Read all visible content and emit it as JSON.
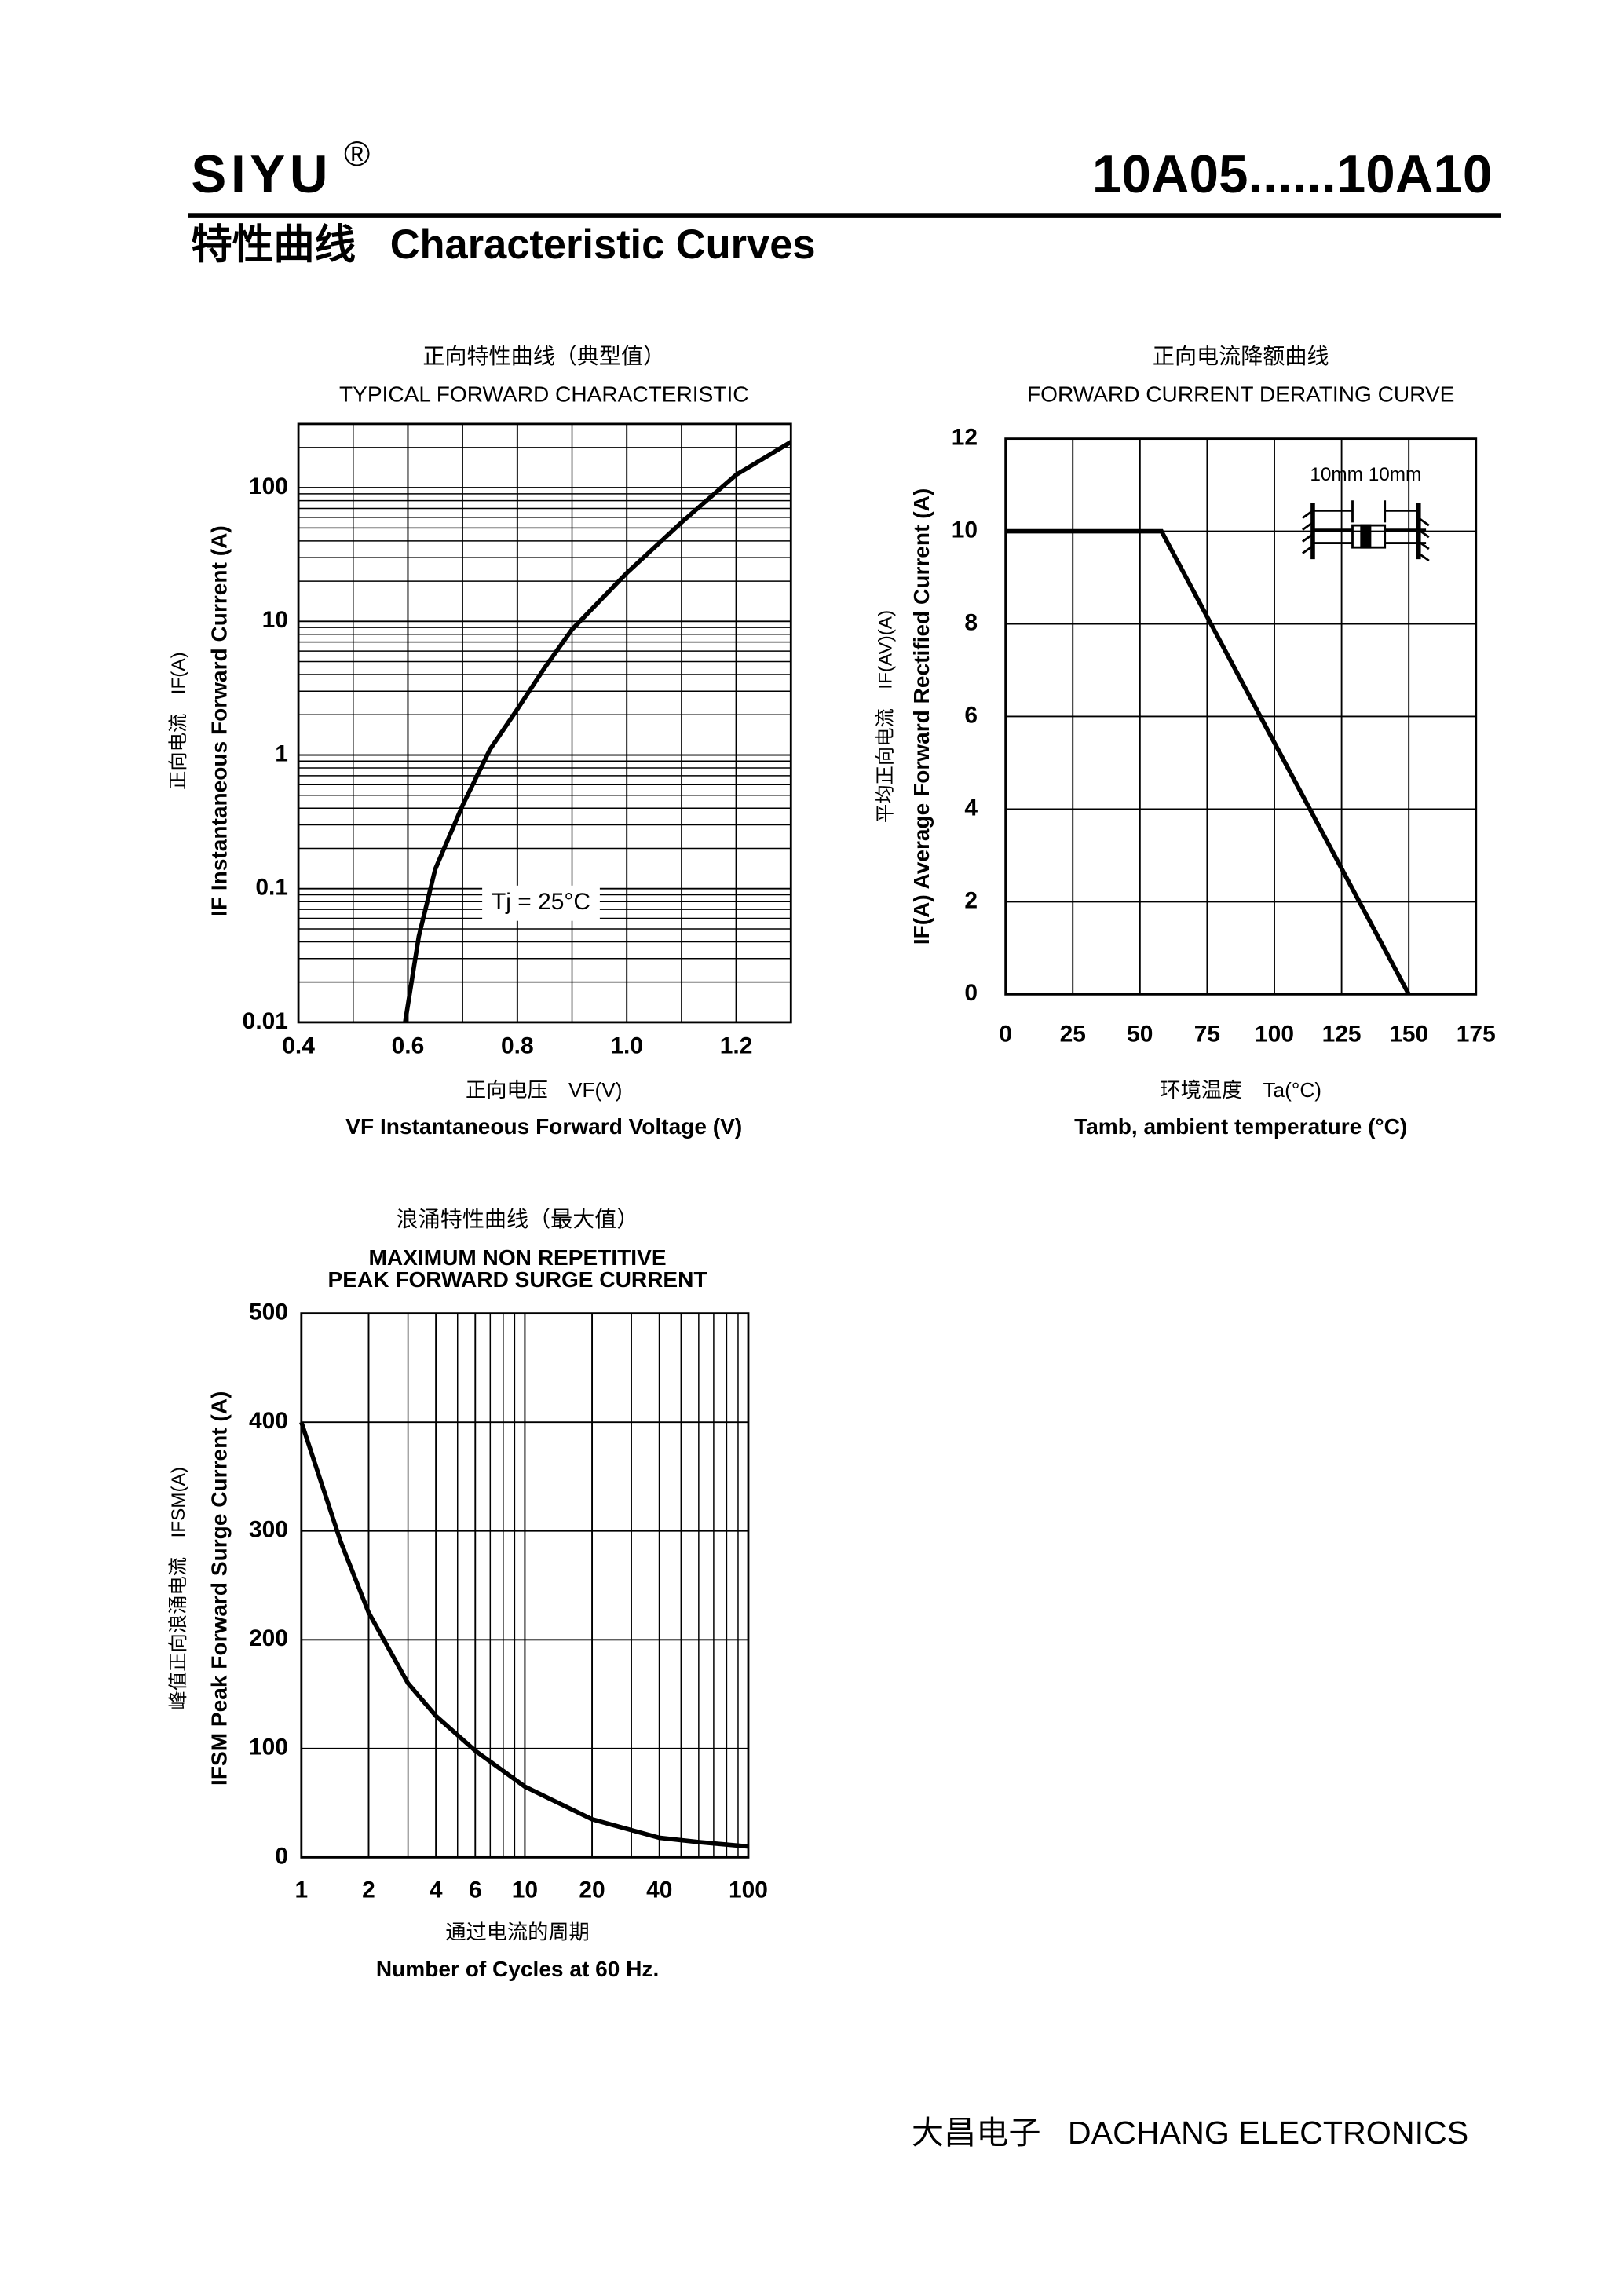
{
  "header": {
    "brand": "SIYU",
    "registered": "®",
    "part": "10A05......10A10"
  },
  "section_title": "特性曲线   Characteristic Curves",
  "chart_data": [
    {
      "type": "line",
      "title_cn": "正向特性曲线（典型值）",
      "title": "TYPICAL FORWARD CHARACTERISTIC",
      "y_label_cn": "正向电流　IF(A)",
      "y_label": "IF Instantaneous Forward Current (A)",
      "x_label_cn": "正向电压　VF(V)",
      "x_label": "VF Instantaneous Forward Voltage (V)",
      "annotation": "Tj = 25°C",
      "x": [
        0.595,
        0.62,
        0.65,
        0.7,
        0.75,
        0.8,
        0.85,
        0.9,
        1.0,
        1.1,
        1.2,
        1.3
      ],
      "values": [
        0.01,
        0.044,
        0.14,
        0.42,
        1.1,
        2.2,
        4.5,
        8.7,
        23,
        55,
        125,
        220
      ],
      "color": "#000000",
      "xlim": [
        0.4,
        1.3
      ],
      "xticks": [
        0.4,
        0.6,
        0.8,
        {
          "value": 1,
          "label": "1.0"
        },
        1.2
      ],
      "xgrid_step": 0.1,
      "ylim": [
        0.01,
        300
      ],
      "yticks": [
        0.01,
        0.1,
        1,
        10,
        100
      ],
      "yscale": "log",
      "yminor_grid": true,
      "grid": true
    },
    {
      "type": "line",
      "title_cn": "正向电流降额曲线",
      "title": "FORWARD CURRENT DERATING CURVE",
      "y_label_cn": "平均正向电流　IF(AV)(A)",
      "y_label": "IF(A) Average Forward Rectified Current (A)",
      "x_label_cn": "环境温度　Ta(°C)",
      "x_label": "Tamb, ambient temperature (°C)",
      "annotation": "10mm  10mm",
      "x": [
        0,
        58,
        150
      ],
      "values": [
        10,
        10,
        0
      ],
      "color": "#000000",
      "xlim": [
        0,
        175
      ],
      "xticks": [
        0,
        25,
        50,
        75,
        100,
        125,
        150,
        175
      ],
      "ylim": [
        0,
        12
      ],
      "yticks": [
        0,
        2,
        4,
        6,
        8,
        10,
        12
      ],
      "grid": true
    },
    {
      "type": "line",
      "title_cn": "浪涌特性曲线（最大值）",
      "title": "MAXIMUM NON REPETITIVE",
      "subtitle": "PEAK FORWARD SURGE CURRENT",
      "y_label_cn": "峰值正向浪涌电流　IFSM(A)",
      "y_label": "IFSM Peak Forward Surge Current (A)",
      "x_label_cn": "通过电流的周期",
      "x_label": "Number  of  Cycles at 60 Hz.",
      "x": [
        1,
        1.5,
        2,
        3,
        4,
        6,
        10,
        20,
        40,
        60,
        100
      ],
      "values": [
        400,
        290,
        225,
        160,
        130,
        98,
        65,
        35,
        18,
        14,
        10
      ],
      "color": "#000000",
      "xlim": [
        1,
        100
      ],
      "xticks": [
        1,
        2,
        4,
        6,
        10,
        20,
        40,
        100
      ],
      "xscale": "log",
      "xminor_grid": true,
      "ylim": [
        0,
        500
      ],
      "yticks": [
        0,
        100,
        200,
        300,
        400,
        500
      ],
      "grid": true
    }
  ],
  "footer": "大昌电子   DACHANG ELECTRONICS"
}
